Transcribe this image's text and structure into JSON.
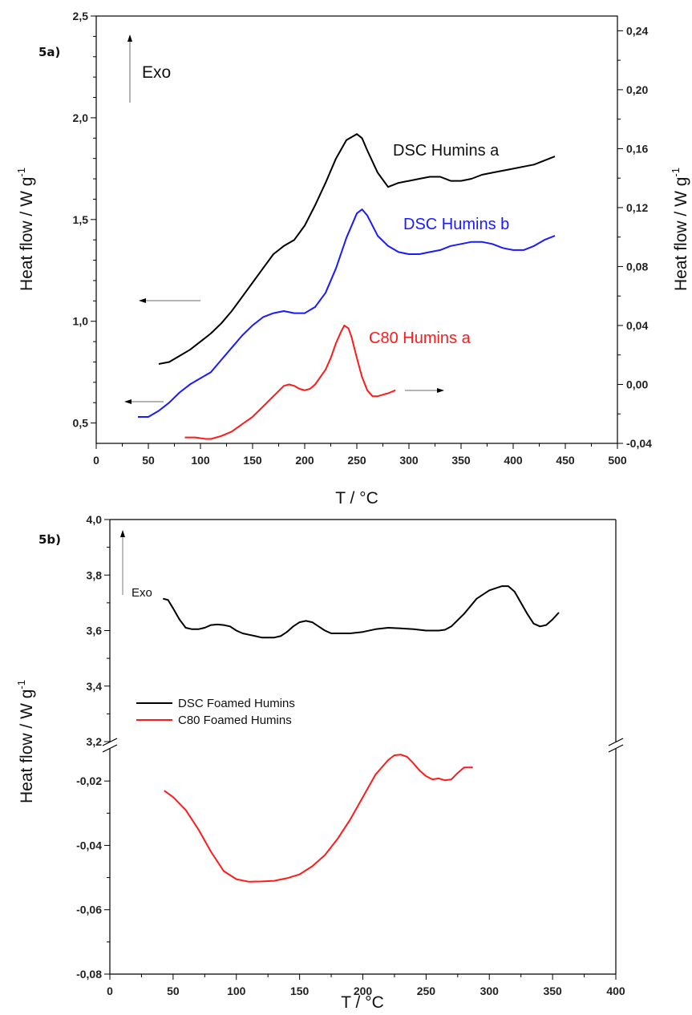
{
  "chart_data": [
    {
      "panel": "5a)",
      "type": "line",
      "xlabel": "T / °C",
      "ylabel_left": "Heat flow / W g",
      "ylabel_right": "Heat flow / W g",
      "ylabel_superscript": "-1",
      "xlim": [
        0,
        500
      ],
      "ylim_left": [
        0.4,
        2.5
      ],
      "ylim_right": [
        -0.04,
        0.25
      ],
      "x_ticks": [
        "0",
        "50",
        "100",
        "150",
        "200",
        "250",
        "300",
        "350",
        "400",
        "450",
        "500"
      ],
      "y_ticks_left": [
        "0,5",
        "1,0",
        "1,5",
        "2,0",
        "2,5"
      ],
      "y_ticks_right": [
        "-0,04",
        "0,00",
        "0,04",
        "0,08",
        "0,12",
        "0,16",
        "0,20",
        "0,24"
      ],
      "exo_label": "Exo",
      "series": [
        {
          "name": "DSC Humins a",
          "axis": "left",
          "color": "#000000",
          "x": [
            60,
            70,
            80,
            90,
            100,
            110,
            120,
            130,
            140,
            150,
            160,
            170,
            180,
            190,
            200,
            210,
            220,
            230,
            240,
            250,
            255,
            260,
            270,
            280,
            290,
            300,
            310,
            320,
            330,
            340,
            350,
            360,
            370,
            380,
            390,
            400,
            410,
            420,
            430,
            440
          ],
          "y": [
            0.79,
            0.8,
            0.83,
            0.86,
            0.9,
            0.94,
            0.99,
            1.05,
            1.12,
            1.19,
            1.26,
            1.33,
            1.37,
            1.4,
            1.47,
            1.57,
            1.68,
            1.8,
            1.89,
            1.92,
            1.9,
            1.84,
            1.73,
            1.66,
            1.68,
            1.69,
            1.7,
            1.71,
            1.71,
            1.69,
            1.69,
            1.7,
            1.72,
            1.73,
            1.74,
            1.75,
            1.76,
            1.77,
            1.79,
            1.81
          ]
        },
        {
          "name": "DSC Humins b",
          "axis": "left",
          "color": "#1a1aff",
          "x": [
            40,
            50,
            60,
            70,
            80,
            90,
            100,
            110,
            120,
            130,
            140,
            150,
            160,
            170,
            180,
            190,
            200,
            210,
            220,
            230,
            240,
            250,
            255,
            260,
            270,
            280,
            290,
            300,
            310,
            320,
            330,
            340,
            350,
            360,
            370,
            380,
            390,
            400,
            410,
            420,
            430,
            440
          ],
          "y": [
            0.53,
            0.53,
            0.56,
            0.6,
            0.65,
            0.69,
            0.72,
            0.75,
            0.81,
            0.87,
            0.93,
            0.98,
            1.02,
            1.04,
            1.05,
            1.04,
            1.04,
            1.07,
            1.14,
            1.26,
            1.41,
            1.53,
            1.55,
            1.52,
            1.42,
            1.37,
            1.34,
            1.33,
            1.33,
            1.34,
            1.35,
            1.37,
            1.38,
            1.39,
            1.39,
            1.38,
            1.36,
            1.35,
            1.35,
            1.37,
            1.4,
            1.42
          ]
        },
        {
          "name": "C80 Humins a",
          "axis": "right",
          "color": "#ff1a1a",
          "x": [
            85,
            95,
            105,
            110,
            120,
            130,
            140,
            150,
            160,
            170,
            180,
            185,
            190,
            195,
            200,
            205,
            210,
            220,
            225,
            230,
            235,
            238,
            242,
            245,
            250,
            255,
            260,
            265,
            270,
            275,
            280,
            287
          ],
          "y": [
            -0.036,
            -0.036,
            -0.037,
            -0.037,
            -0.035,
            -0.032,
            -0.027,
            -0.022,
            -0.015,
            -0.008,
            -0.001,
            0.0,
            -0.001,
            -0.003,
            -0.004,
            -0.003,
            0.0,
            0.01,
            0.018,
            0.028,
            0.036,
            0.04,
            0.038,
            0.032,
            0.018,
            0.005,
            -0.004,
            -0.008,
            -0.008,
            -0.007,
            -0.006,
            -0.004
          ]
        }
      ],
      "series_labels": [
        "DSC Humins a",
        "DSC Humins b",
        "C80 Humins a"
      ]
    },
    {
      "panel": "5b)",
      "type": "line",
      "xlabel": "T / °C",
      "ylabel": "Heat flow / W g",
      "ylabel_superscript": "-1",
      "xlim": [
        0,
        400
      ],
      "broken_y_axis": true,
      "ylim_upper": [
        3.2,
        4.0
      ],
      "ylim_lower": [
        -0.08,
        -0.01
      ],
      "x_ticks": [
        "0",
        "50",
        "100",
        "150",
        "200",
        "250",
        "300",
        "350",
        "400"
      ],
      "y_ticks_upper": [
        "3,2",
        "3,4",
        "3,6",
        "3,8",
        "4,0"
      ],
      "y_ticks_lower": [
        "-0,02",
        "-0,04",
        "-0,06",
        "-0,08"
      ],
      "exo_label": "Exo",
      "legend": [
        "DSC Foamed Humins",
        "C80 Foamed Humins"
      ],
      "series": [
        {
          "name": "DSC Foamed Humins",
          "segment": "upper",
          "color": "#000000",
          "x": [
            42,
            46,
            50,
            55,
            60,
            65,
            70,
            75,
            80,
            85,
            90,
            95,
            100,
            105,
            110,
            115,
            120,
            125,
            130,
            135,
            140,
            145,
            150,
            155,
            160,
            165,
            170,
            175,
            180,
            185,
            190,
            200,
            210,
            220,
            230,
            240,
            250,
            260,
            265,
            270,
            280,
            290,
            300,
            310,
            315,
            320,
            325,
            330,
            335,
            340,
            345,
            350,
            355
          ],
          "y": [
            3.715,
            3.71,
            3.68,
            3.64,
            3.61,
            3.605,
            3.605,
            3.61,
            3.62,
            3.622,
            3.62,
            3.615,
            3.6,
            3.59,
            3.585,
            3.58,
            3.575,
            3.575,
            3.575,
            3.58,
            3.595,
            3.615,
            3.63,
            3.635,
            3.63,
            3.615,
            3.6,
            3.59,
            3.59,
            3.59,
            3.59,
            3.595,
            3.605,
            3.61,
            3.608,
            3.605,
            3.6,
            3.6,
            3.603,
            3.615,
            3.66,
            3.715,
            3.745,
            3.76,
            3.76,
            3.74,
            3.7,
            3.66,
            3.625,
            3.615,
            3.62,
            3.64,
            3.665
          ]
        },
        {
          "name": "C80 Foamed Humins",
          "segment": "lower",
          "color": "#ff1a1a",
          "x": [
            43,
            50,
            60,
            70,
            80,
            90,
            100,
            110,
            120,
            130,
            140,
            150,
            160,
            170,
            180,
            190,
            200,
            210,
            220,
            225,
            230,
            235,
            240,
            245,
            250,
            255,
            260,
            265,
            270,
            275,
            280,
            287
          ],
          "y": [
            -0.023,
            -0.025,
            -0.029,
            -0.035,
            -0.042,
            -0.048,
            -0.0505,
            -0.0513,
            -0.0512,
            -0.051,
            -0.0502,
            -0.049,
            -0.0465,
            -0.043,
            -0.038,
            -0.032,
            -0.025,
            -0.018,
            -0.0135,
            -0.012,
            -0.0118,
            -0.0125,
            -0.0145,
            -0.0168,
            -0.0185,
            -0.0195,
            -0.0192,
            -0.0198,
            -0.0195,
            -0.0175,
            -0.0158,
            -0.0158
          ]
        }
      ]
    }
  ]
}
